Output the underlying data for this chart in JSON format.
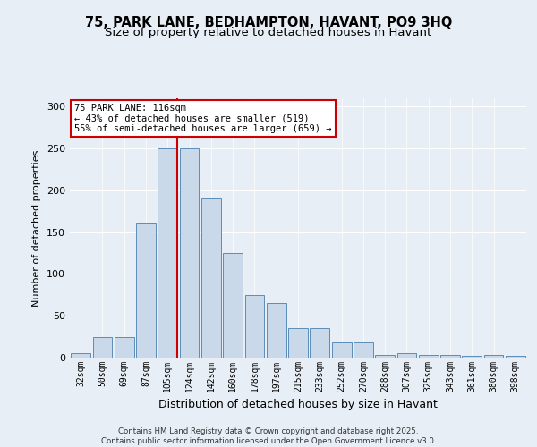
{
  "title_line1": "75, PARK LANE, BEDHAMPTON, HAVANT, PO9 3HQ",
  "title_line2": "Size of property relative to detached houses in Havant",
  "xlabel": "Distribution of detached houses by size in Havant",
  "ylabel": "Number of detached properties",
  "categories": [
    "32sqm",
    "50sqm",
    "69sqm",
    "87sqm",
    "105sqm",
    "124sqm",
    "142sqm",
    "160sqm",
    "178sqm",
    "197sqm",
    "215sqm",
    "233sqm",
    "252sqm",
    "270sqm",
    "288sqm",
    "307sqm",
    "325sqm",
    "343sqm",
    "361sqm",
    "380sqm",
    "398sqm"
  ],
  "values": [
    5,
    25,
    25,
    160,
    250,
    250,
    190,
    125,
    75,
    65,
    35,
    35,
    18,
    18,
    3,
    5,
    3,
    3,
    2,
    3,
    2
  ],
  "bar_color": "#c9d9ea",
  "bar_edge_color": "#5b8db8",
  "vline_index": 4,
  "vline_color": "#cc0000",
  "annotation_text": "75 PARK LANE: 116sqm\n← 43% of detached houses are smaller (519)\n55% of semi-detached houses are larger (659) →",
  "annotation_box_color": "#ffffff",
  "annotation_box_edge": "#cc0000",
  "ylim": [
    0,
    310
  ],
  "yticks": [
    0,
    50,
    100,
    150,
    200,
    250,
    300
  ],
  "background_color": "#e8eef5",
  "grid_color": "#ffffff",
  "footer_text": "Contains HM Land Registry data © Crown copyright and database right 2025.\nContains public sector information licensed under the Open Government Licence v3.0.",
  "title_fontsize": 10.5,
  "subtitle_fontsize": 9.5,
  "tick_fontsize": 7,
  "ylabel_fontsize": 8,
  "xlabel_fontsize": 9
}
